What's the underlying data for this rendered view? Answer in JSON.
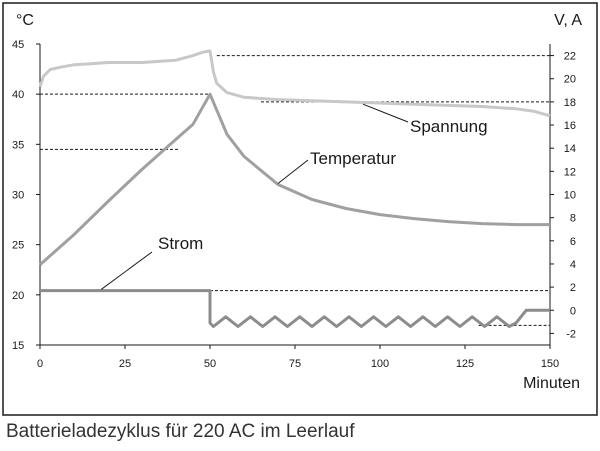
{
  "caption": "Batterieladezyklus für 220 AC im Leerlauf",
  "chart_data": {
    "type": "line",
    "left_axis_unit": "°C",
    "right_axis_unit": "V, A",
    "xlabel": "Minuten",
    "xlim": [
      0,
      150
    ],
    "ylim_left": [
      15,
      45
    ],
    "ylim_right": [
      -3,
      23
    ],
    "x_ticks": [
      "0",
      "25",
      "50",
      "75",
      "100",
      "125",
      "150"
    ],
    "y_left_ticks": [
      "15",
      "20",
      "25",
      "30",
      "35",
      "40",
      "45"
    ],
    "y_right_ticks": [
      "-2",
      "0",
      "2",
      "4",
      "6",
      "8",
      "10",
      "12",
      "14",
      "16",
      "18",
      "20",
      "22"
    ],
    "colors": {
      "spannung": "#c8c8c8",
      "temperatur": "#a0a0a0",
      "strom": "#8c8c8c"
    },
    "series": [
      {
        "name": "Spannung",
        "axis": "right",
        "x": [
          0,
          1,
          3,
          6,
          10,
          15,
          20,
          30,
          40,
          45,
          48,
          50,
          51,
          52,
          55,
          60,
          70,
          90,
          110,
          130,
          140,
          145,
          150
        ],
        "values": [
          19.3,
          20.2,
          20.8,
          21.0,
          21.2,
          21.3,
          21.4,
          21.4,
          21.6,
          22.0,
          22.3,
          22.4,
          20.6,
          19.6,
          18.8,
          18.4,
          18.2,
          18.0,
          17.8,
          17.6,
          17.4,
          17.2,
          16.8
        ]
      },
      {
        "name": "Temperatur",
        "axis": "left",
        "x": [
          0,
          10,
          20,
          30,
          40,
          45,
          48,
          50,
          55,
          60,
          70,
          80,
          90,
          100,
          110,
          120,
          130,
          140,
          150
        ],
        "values": [
          23,
          26,
          29.3,
          32.5,
          35.5,
          37.0,
          38.8,
          40.0,
          36.0,
          33.8,
          31.0,
          29.5,
          28.6,
          28.0,
          27.6,
          27.3,
          27.1,
          27.0,
          27.0
        ]
      },
      {
        "name": "Strom",
        "axis": "right",
        "x": [
          0,
          50,
          50,
          140,
          143,
          150
        ],
        "values": [
          1.7,
          1.7,
          -1.1,
          -1.1,
          0,
          0
        ],
        "ripple": {
          "from": 51,
          "to": 138,
          "amplitude": 0.6
        }
      }
    ],
    "reference_lines": [
      {
        "axis": "right",
        "value": 22,
        "from": 52
      },
      {
        "axis": "right",
        "value": 18,
        "from": 65
      },
      {
        "axis": "left",
        "value": 40,
        "to": 50
      },
      {
        "axis": "left",
        "value": 34.5,
        "to": 41
      },
      {
        "axis": "right",
        "value": 1.7,
        "from": 50
      },
      {
        "axis": "right",
        "value": -1.3,
        "from": 129
      }
    ],
    "annotations": [
      {
        "text": "Spannung",
        "points_to": [
          95,
          17.8
        ]
      },
      {
        "text": "Temperatur",
        "points_to": [
          70,
          31.1
        ]
      },
      {
        "text": "Strom",
        "points_to": [
          18,
          1.8
        ]
      }
    ]
  }
}
